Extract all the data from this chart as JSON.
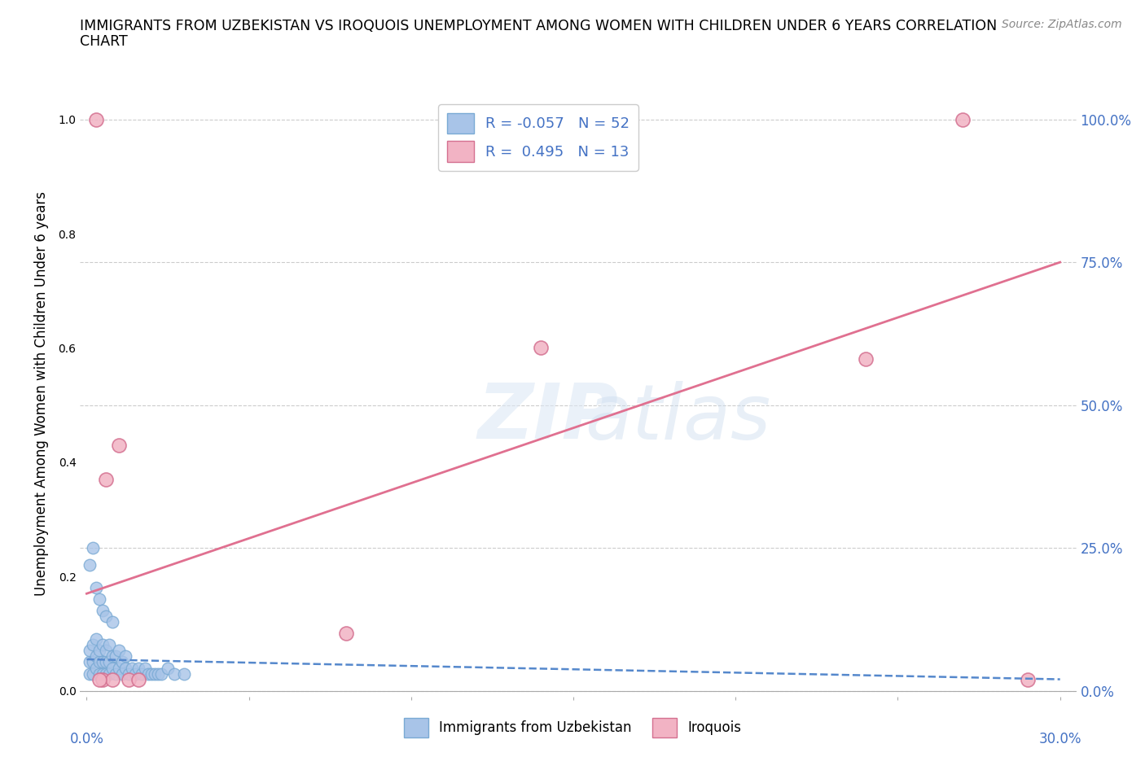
{
  "title_line1": "IMMIGRANTS FROM UZBEKISTAN VS IROQUOIS UNEMPLOYMENT AMONG WOMEN WITH CHILDREN UNDER 6 YEARS CORRELATION",
  "title_line2": "CHART",
  "source": "Source: ZipAtlas.com",
  "ylabel": "Unemployment Among Women with Children Under 6 years",
  "xlim": [
    -0.002,
    0.305
  ],
  "ylim": [
    -0.01,
    1.05
  ],
  "yticks": [
    0.0,
    0.25,
    0.5,
    0.75,
    1.0
  ],
  "yticklabels": [
    "0.0%",
    "25.0%",
    "50.0%",
    "75.0%",
    "100.0%"
  ],
  "xtick_left_label": "0.0%",
  "xtick_right_label": "30.0%",
  "xtick_left_val": 0.0,
  "xtick_right_val": 0.3,
  "uzbekistan_color": "#a8c4e8",
  "uzbekistan_edge": "#7aaad4",
  "iroquois_color": "#f2b3c4",
  "iroquois_edge": "#d47090",
  "trendline_uzbekistan_color": "#5588cc",
  "trendline_iroquois_color": "#e07090",
  "legend_uzbekistan_label": "R = -0.057   N = 52",
  "legend_iroquois_label": "R =  0.495   N = 13",
  "uzbekistan_x": [
    0.001,
    0.001,
    0.001,
    0.002,
    0.002,
    0.002,
    0.003,
    0.003,
    0.003,
    0.004,
    0.004,
    0.004,
    0.005,
    0.005,
    0.005,
    0.006,
    0.006,
    0.006,
    0.007,
    0.007,
    0.007,
    0.008,
    0.008,
    0.009,
    0.009,
    0.01,
    0.01,
    0.011,
    0.011,
    0.012,
    0.012,
    0.013,
    0.014,
    0.015,
    0.016,
    0.017,
    0.018,
    0.019,
    0.02,
    0.021,
    0.022,
    0.023,
    0.025,
    0.027,
    0.03,
    0.001,
    0.002,
    0.003,
    0.004,
    0.005,
    0.006,
    0.008
  ],
  "uzbekistan_y": [
    0.03,
    0.05,
    0.07,
    0.03,
    0.05,
    0.08,
    0.04,
    0.06,
    0.09,
    0.03,
    0.05,
    0.07,
    0.03,
    0.05,
    0.08,
    0.03,
    0.05,
    0.07,
    0.03,
    0.05,
    0.08,
    0.04,
    0.06,
    0.03,
    0.06,
    0.04,
    0.07,
    0.03,
    0.05,
    0.04,
    0.06,
    0.03,
    0.04,
    0.03,
    0.04,
    0.03,
    0.04,
    0.03,
    0.03,
    0.03,
    0.03,
    0.03,
    0.04,
    0.03,
    0.03,
    0.22,
    0.25,
    0.18,
    0.16,
    0.14,
    0.13,
    0.12
  ],
  "iroquois_x": [
    0.003,
    0.006,
    0.01,
    0.013,
    0.016,
    0.08,
    0.14,
    0.24,
    0.27,
    0.29,
    0.005,
    0.008,
    0.004
  ],
  "iroquois_y": [
    1.0,
    0.37,
    0.43,
    0.02,
    0.02,
    0.1,
    0.6,
    0.58,
    1.0,
    0.02,
    0.02,
    0.02,
    0.02
  ],
  "uzbekistan_trendline_x": [
    0.0,
    0.3
  ],
  "uzbekistan_trendline_y": [
    0.055,
    0.02
  ],
  "iroquois_trendline_x": [
    0.0,
    0.3
  ],
  "iroquois_trendline_y": [
    0.17,
    0.75
  ]
}
